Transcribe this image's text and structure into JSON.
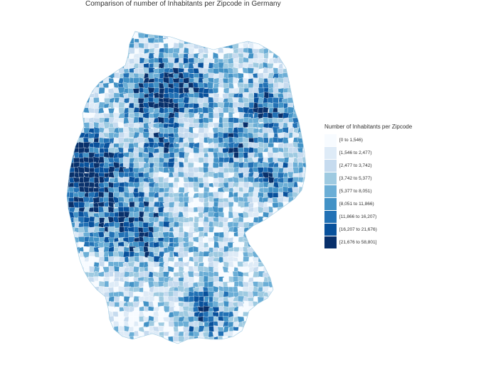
{
  "title": "Comparison of number of Inhabitants per Zipcode in Germany",
  "legend": {
    "title": "Number of Inhabitants per Zipcode",
    "items": [
      {
        "label": "[0 to 1,546)",
        "color": "#f7fbff"
      },
      {
        "label": "[1,546 to 2,477)",
        "color": "#deebf7"
      },
      {
        "label": "[2,477 to 3,742)",
        "color": "#c6dbef"
      },
      {
        "label": "[3,742 to 5,377)",
        "color": "#9ecae1"
      },
      {
        "label": "[5,377 to 8,051)",
        "color": "#6baed6"
      },
      {
        "label": "[8,051 to 11,866)",
        "color": "#4292c6"
      },
      {
        "label": "[11,866 to 16,207)",
        "color": "#2171b5"
      },
      {
        "label": "[16,207 to 21,676)",
        "color": "#08519c"
      },
      {
        "label": "[21,676 to 58,801]",
        "color": "#08306b"
      }
    ]
  }
}
